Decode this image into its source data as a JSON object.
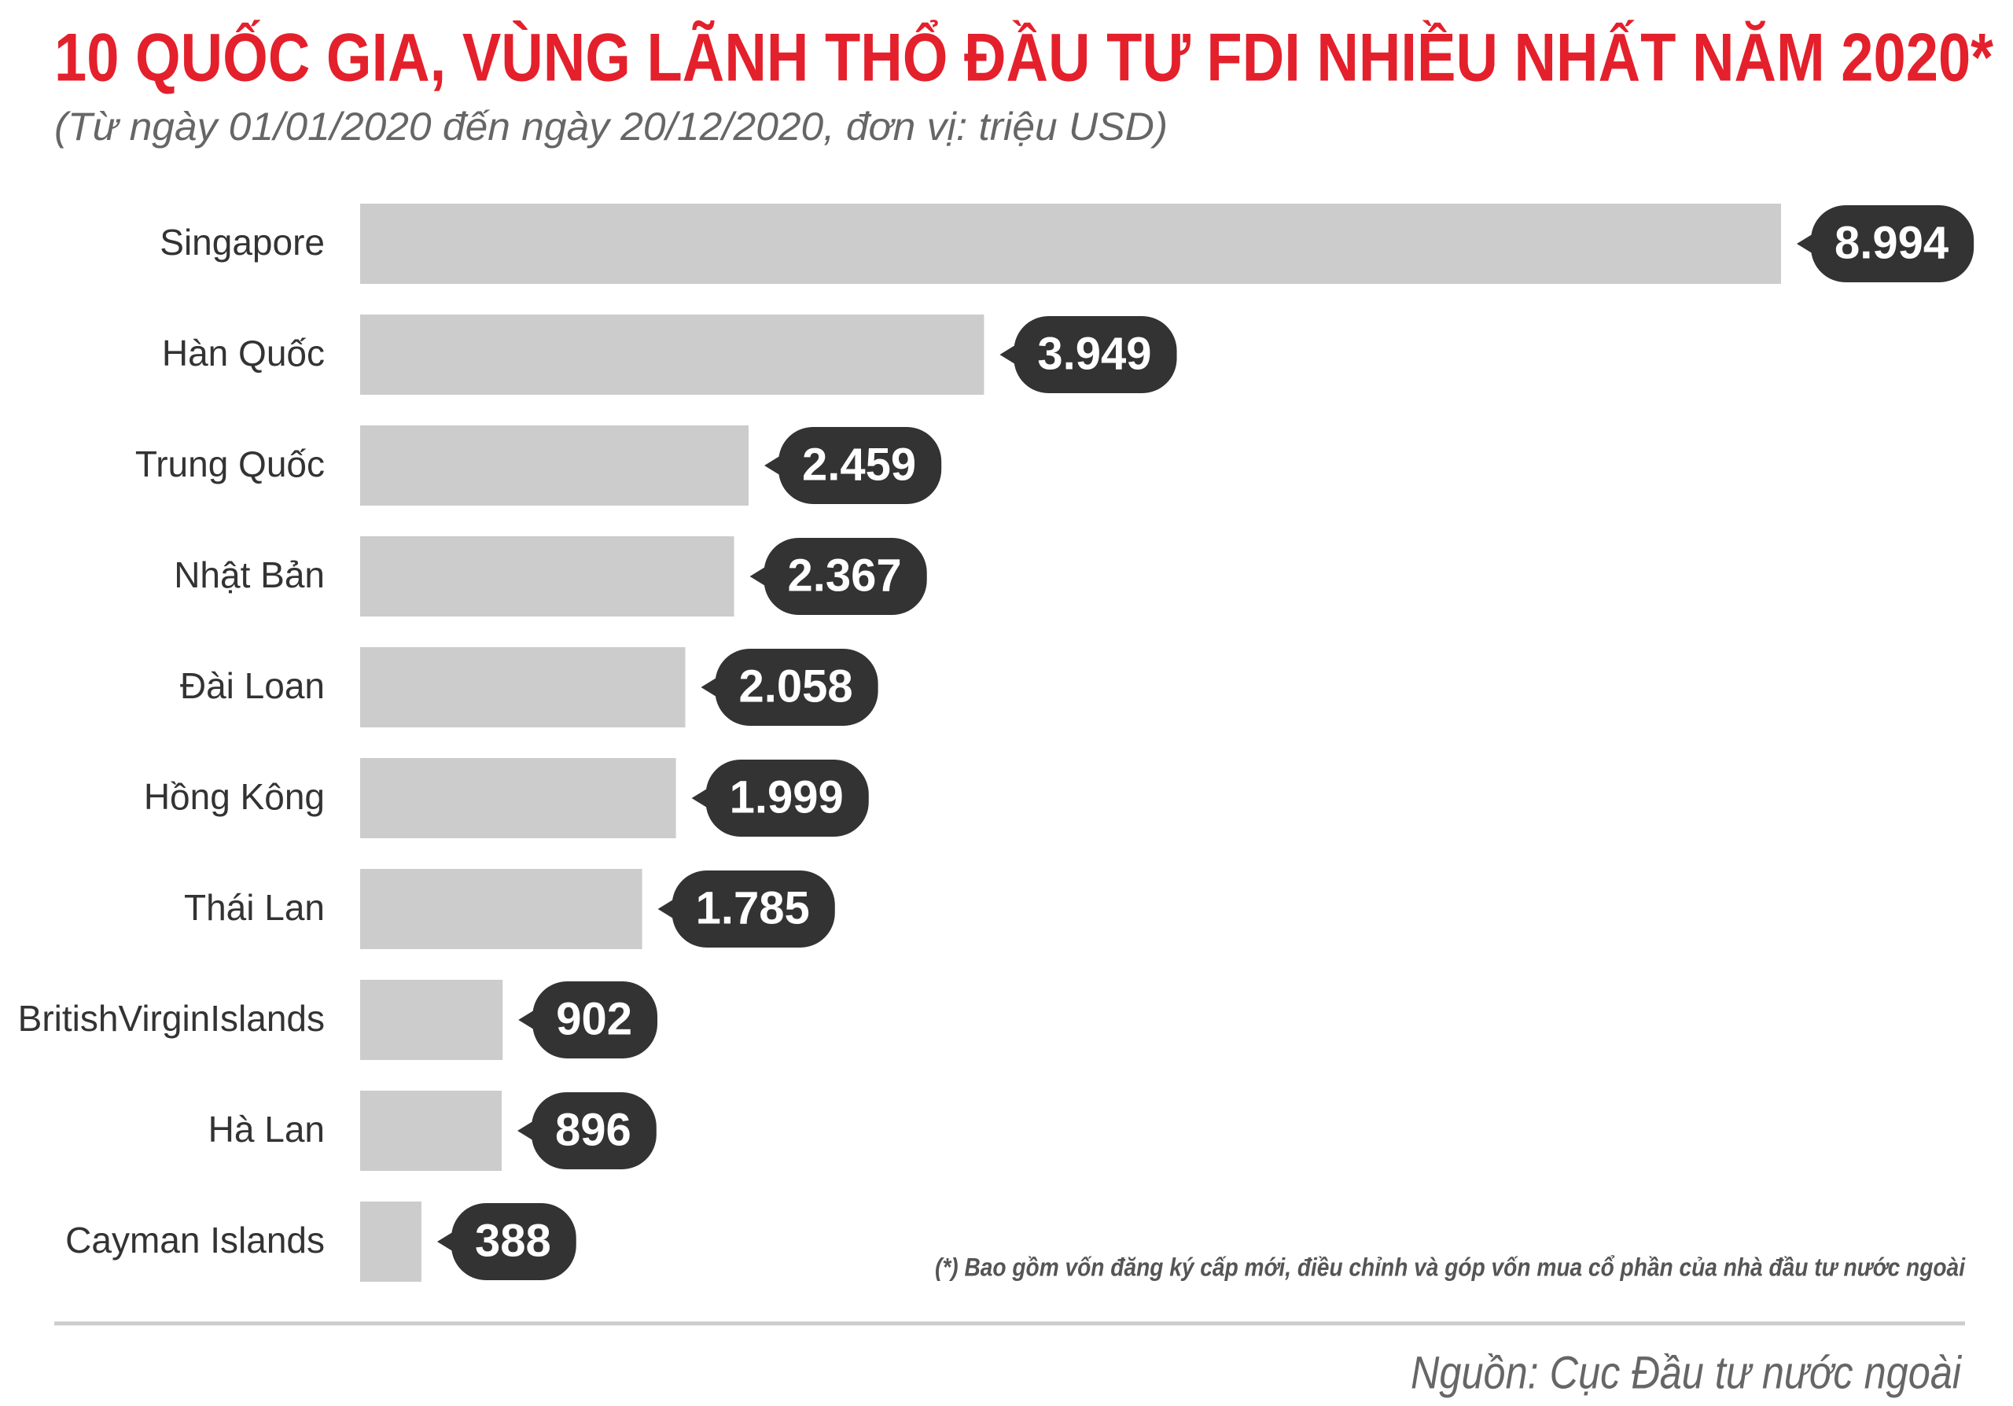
{
  "chart_data": {
    "type": "bar",
    "orientation": "horizontal",
    "title": "10 QUỐC GIA, VÙNG LÃNH THỔ ĐẦU TƯ FDI NHIỀU NHẤT NĂM 2020*",
    "subtitle": "(Từ ngày 01/01/2020 đến ngày 20/12/2020, đơn vị: triệu USD)",
    "categories": [
      "Singapore",
      "Hàn Quốc",
      "Trung Quốc",
      "Nhật Bản",
      "Đài Loan",
      "Hồng Kông",
      "Thái Lan",
      "BritishVirginIslands",
      "Hà Lan",
      "Cayman Islands"
    ],
    "values": [
      8994,
      3949,
      2459,
      2367,
      2058,
      1999,
      1785,
      902,
      896,
      388
    ],
    "value_labels": [
      "8.994",
      "3.949",
      "2.459",
      "2.367",
      "2.058",
      "1.999",
      "1.785",
      "902",
      "896",
      "388"
    ],
    "color": "#cccccc",
    "label_color": "#333333",
    "footnote": "(*) Bao gồm vốn đăng ký cấp mới, điều chỉnh và góp vốn mua cổ phần của nhà đầu tư nước ngoài",
    "source": "Nguồn: Cục Đầu tư nước ngoài"
  }
}
